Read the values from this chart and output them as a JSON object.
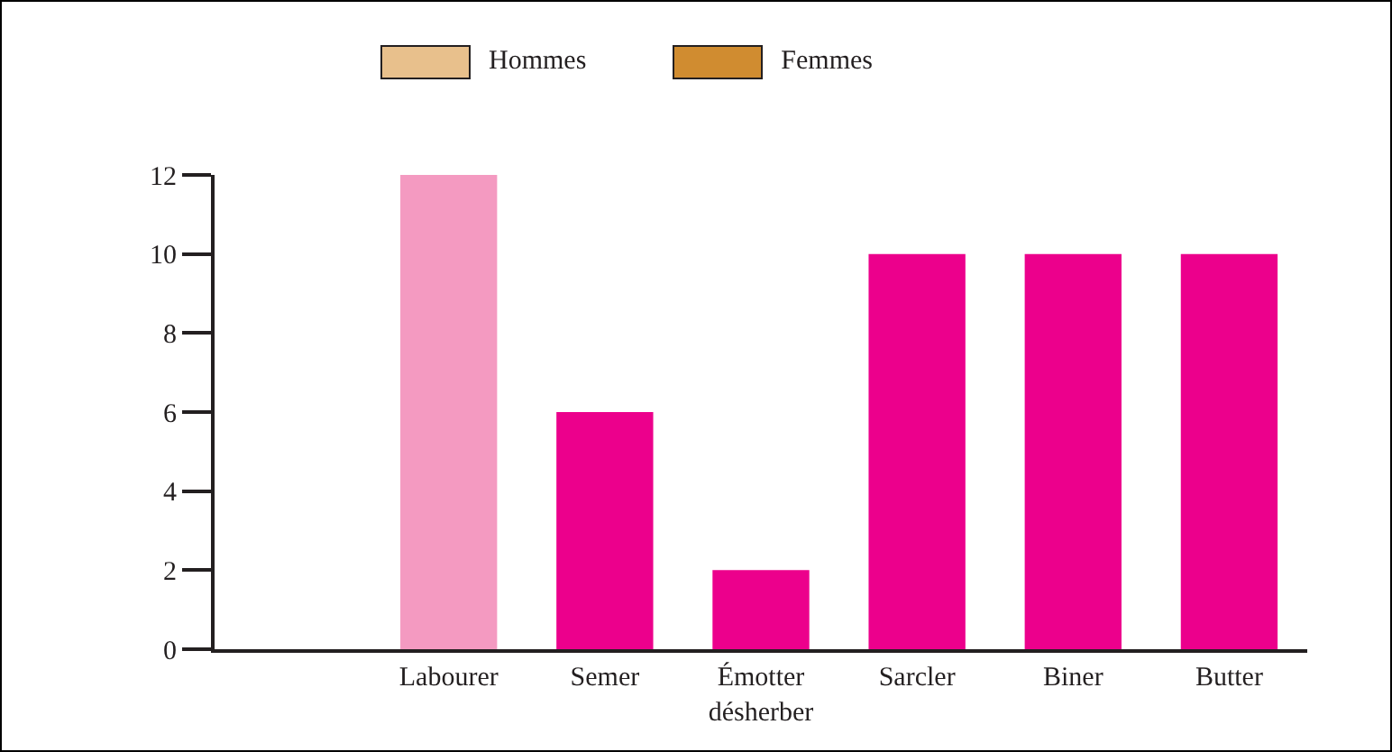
{
  "chart_data": {
    "type": "bar",
    "categories": [
      null,
      "Labourer",
      "Semer",
      "Émotter\ndésherber",
      "Sarcler",
      "Biner",
      "Butter"
    ],
    "values": [
      null,
      12,
      6,
      2,
      10,
      10,
      10
    ],
    "colors": [
      "#ec008c",
      "#f49ac1",
      "#ec008c",
      "#ec008c",
      "#ec008c",
      "#ec008c",
      "#ec008c"
    ],
    "annotations": [
      "Hommes",
      "Femmes"
    ],
    "ylim": [
      0,
      12
    ],
    "yticks": [
      0,
      2,
      4,
      6,
      8,
      10,
      12
    ],
    "grid": false
  }
}
